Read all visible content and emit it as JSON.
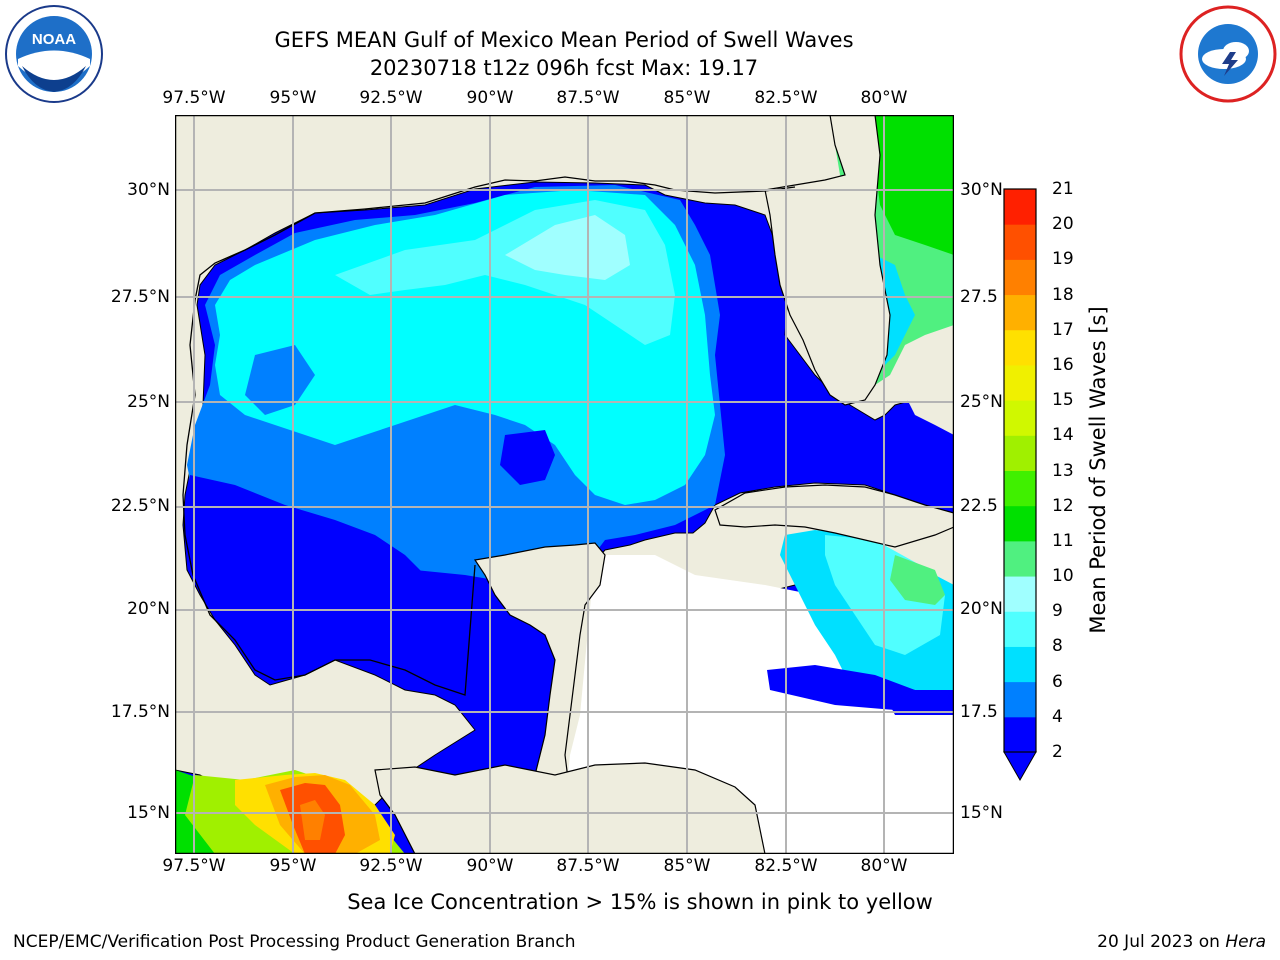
{
  "title": {
    "line1": "GEFS MEAN Gulf of Mexico Mean Period of Swell Waves",
    "line2": "20230718 t12z 096h fcst   Max: 19.17"
  },
  "logos": {
    "left_icon": "noaa-logo",
    "right_icon": "nws-logo"
  },
  "lon_ticks": [
    "97.5°W",
    "95°W",
    "92.5°W",
    "90°W",
    "87.5°W",
    "85°W",
    "82.5°W",
    "80°W"
  ],
  "lat_ticks": [
    "30°N",
    "27.5°N",
    "25°N",
    "22.5°N",
    "20°N",
    "17.5°N",
    "15°N"
  ],
  "right_lat_ticks": [
    "30°N",
    "27.5",
    "25°N",
    "22.5",
    "20°N",
    "17.5",
    "15°N"
  ],
  "colorbar": {
    "label": "Mean Period of Swell Waves [s]",
    "levels": [
      "2",
      "4",
      "6",
      "8",
      "9",
      "10",
      "11",
      "12",
      "13",
      "14",
      "15",
      "16",
      "17",
      "18",
      "19",
      "20",
      "21"
    ],
    "colors": [
      "#0000ff",
      "#0080ff",
      "#00e0ff",
      "#50ffff",
      "#a0ffff",
      "#50f080",
      "#00e000",
      "#40f000",
      "#a0f000",
      "#d0f800",
      "#f0f000",
      "#ffe000",
      "#ffb000",
      "#ff8000",
      "#ff5000",
      "#ff2000"
    ]
  },
  "map_colors": {
    "land": "#eeedde",
    "ocean_none": "#ffffff",
    "grid": "#b4b4b4"
  },
  "note": "Sea Ice Concentration > 15% is shown in pink to yellow",
  "footer": {
    "left": "NCEP/EMC/Verification Post Processing Product Generation Branch",
    "right_date": "20 Jul 2023 on ",
    "right_host": "Hera"
  }
}
